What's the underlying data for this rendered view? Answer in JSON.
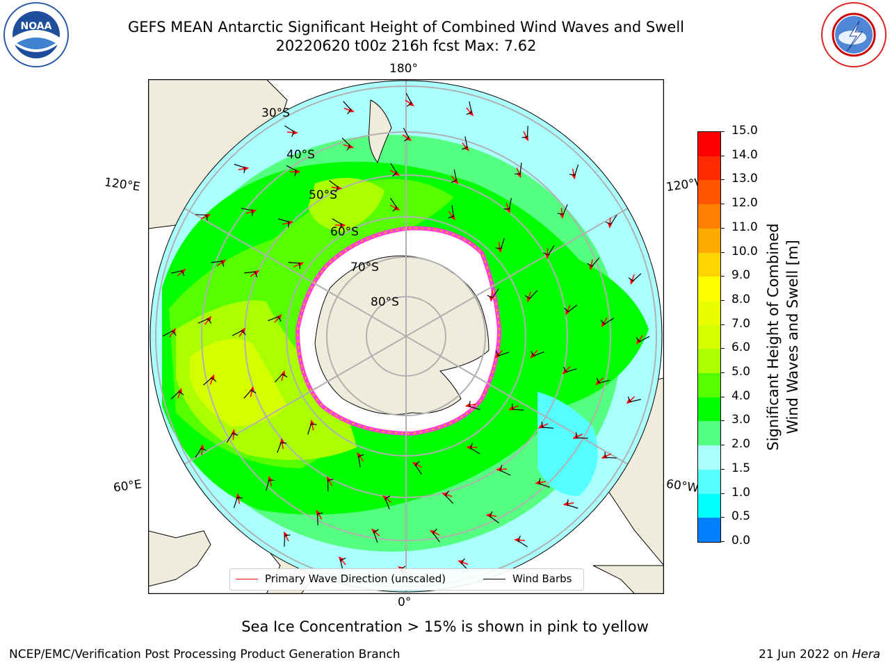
{
  "title": {
    "line1": "GEFS MEAN Antarctic Significant Height of Combined Wind Waves and Swell",
    "line2": "20220620 t00z 216h fcst   Max: 7.62"
  },
  "map": {
    "projection": "south-polar-stereographic",
    "longitude_labels": {
      "top": "180°",
      "bottom": "0°",
      "upper_left": "120°E",
      "upper_right": "120°W",
      "lower_left": "60°E",
      "lower_right": "60°W"
    },
    "latitude_labels": [
      "30°S",
      "40°S",
      "50°S",
      "60°S",
      "70°S",
      "80°S"
    ],
    "colors": {
      "land": "#efecdc",
      "sea_ice": "#ffffff",
      "grid": "#b0b0b0",
      "arrow": "#ff0000",
      "barb": "#000000"
    }
  },
  "colorbar": {
    "label": "Significant Height of Combined Wind Waves and Swell [m]",
    "label_line1": "Significant Height of Combined",
    "label_line2": "Wind Waves and Swell [m]",
    "ticks": [
      "15.0",
      "14.0",
      "13.0",
      "12.0",
      "11.0",
      "10.0",
      "9.0",
      "8.0",
      "7.0",
      "6.0",
      "5.0",
      "4.0",
      "3.0",
      "2.0",
      "1.5",
      "1.0",
      "0.5",
      "0.0"
    ],
    "colors_top_to_bottom": [
      "#ff0000",
      "#ff2a00",
      "#ff5500",
      "#ff7f00",
      "#ffaa00",
      "#ffd400",
      "#ffff00",
      "#e9ff00",
      "#d4ff00",
      "#aaff00",
      "#55ff00",
      "#00ff00",
      "#55ff7f",
      "#aaffff",
      "#55ffff",
      "#00ffff",
      "#007fff",
      "#0000ff"
    ]
  },
  "legend": {
    "primary_wave": "Primary Wave Direction (unscaled)",
    "wind_barbs": "Wind Barbs"
  },
  "note": "Sea Ice Concentration > 15% is shown in pink to yellow",
  "footer": {
    "left": "NCEP/EMC/Verification Post Processing Product Generation Branch",
    "right_date": "21 Jun 2022 on ",
    "right_host": "Hera"
  },
  "logos": {
    "left": "NOAA",
    "right": "NATIONAL WEATHER SERVICE"
  }
}
